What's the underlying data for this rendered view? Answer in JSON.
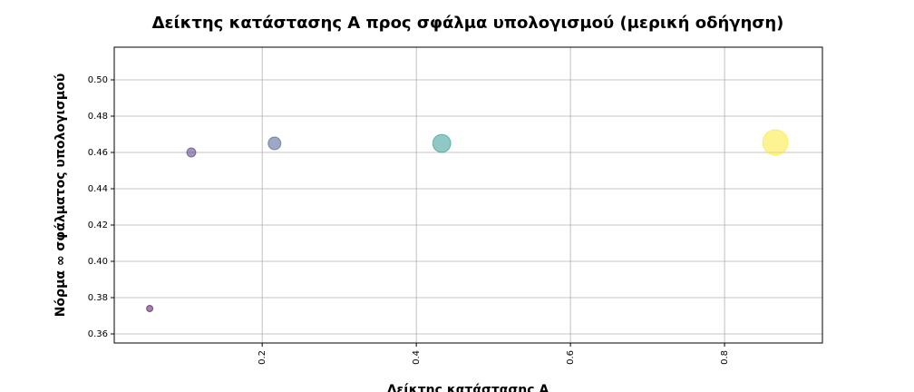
{
  "chart_data": {
    "type": "scatter",
    "title": "Δείκτης κατάστασης A προς σφάλμα υπολογισμού (μερική οδήγηση)",
    "xlabel": "Δείκτης κατάστασης A",
    "ylabel": "Νόρμα ∞ σφάλματος υπολογισμού",
    "x": [
      0.054,
      0.108,
      0.216,
      0.433,
      0.866
    ],
    "values": [
      0.374,
      0.46,
      0.465,
      0.465,
      0.4655
    ],
    "sizes": [
      0.054,
      0.108,
      0.216,
      0.433,
      0.866
    ],
    "colors": [
      "#440154",
      "#472c7a",
      "#3b528b",
      "#21918c",
      "#fde725"
    ],
    "xlim": [
      0.008,
      0.927
    ],
    "ylim": [
      0.355,
      0.518
    ],
    "xticks": [
      0.2,
      0.4,
      0.6,
      0.8
    ],
    "yticks": [
      {
        "value": 0.36,
        "label": "0.36"
      },
      {
        "value": 0.38,
        "label": "0.38"
      },
      {
        "value": 0.4,
        "label": "0.40"
      },
      {
        "value": 0.42,
        "label": "0.42"
      },
      {
        "value": 0.44,
        "label": "0.44"
      },
      {
        "value": 0.46,
        "label": "0.46"
      },
      {
        "value": 0.48,
        "label": "0.48"
      },
      {
        "value": 0.5,
        "label": "0.50"
      }
    ],
    "grid": true
  }
}
